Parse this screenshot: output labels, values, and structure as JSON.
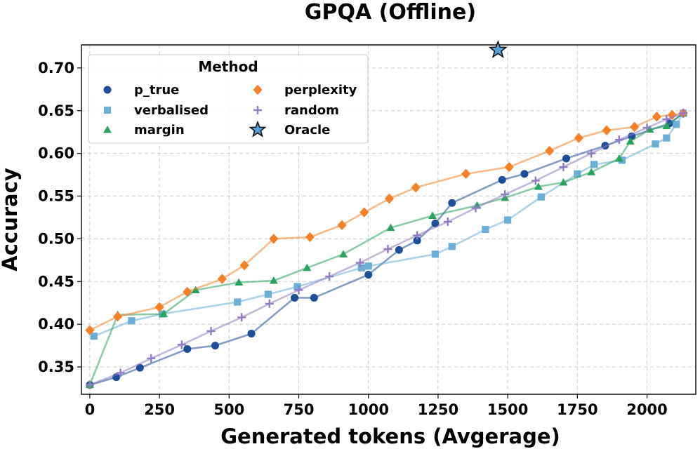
{
  "chart_data": {
    "type": "line",
    "title": "GPQA (Offline)",
    "xlabel": "Generated tokens (Avgerage)",
    "ylabel": "Accuracy",
    "xlim": [
      -30,
      2175
    ],
    "ylim": [
      0.318,
      0.727
    ],
    "xticks": [
      0,
      250,
      500,
      750,
      1000,
      1250,
      1500,
      1750,
      2000
    ],
    "xtick_labels": [
      "0",
      "250",
      "500",
      "750",
      "1000",
      "1250",
      "1500",
      "1750",
      "2000"
    ],
    "yticks": [
      0.35,
      0.4,
      0.45,
      0.5,
      0.55,
      0.6,
      0.65,
      0.7
    ],
    "ytick_labels": [
      "0.35",
      "0.40",
      "0.45",
      "0.50",
      "0.55",
      "0.60",
      "0.65",
      "0.70"
    ],
    "grid": true,
    "legend": {
      "title": "Method",
      "placement": "top-left",
      "entries": [
        "p_true",
        "perplexity",
        "verbalised",
        "random",
        "margin",
        "Oracle"
      ]
    },
    "series": [
      {
        "name": "p_true",
        "color": "#1f4e99",
        "marker": "circle",
        "x": [
          0,
          95,
          180,
          350,
          450,
          580,
          735,
          805,
          1000,
          1110,
          1175,
          1240,
          1300,
          1480,
          1560,
          1710,
          1850,
          1945,
          2080,
          2130
        ],
        "y": [
          0.329,
          0.338,
          0.349,
          0.371,
          0.375,
          0.389,
          0.431,
          0.431,
          0.458,
          0.487,
          0.498,
          0.518,
          0.542,
          0.569,
          0.576,
          0.594,
          0.609,
          0.62,
          0.635,
          0.647
        ]
      },
      {
        "name": "verbalised",
        "color": "#6baed6",
        "marker": "square",
        "x": [
          15,
          150,
          260,
          530,
          640,
          745,
          975,
          1000,
          1240,
          1300,
          1420,
          1500,
          1620,
          1750,
          1810,
          1910,
          2030,
          2070,
          2105,
          2130
        ],
        "y": [
          0.386,
          0.404,
          0.412,
          0.426,
          0.435,
          0.444,
          0.466,
          0.468,
          0.482,
          0.491,
          0.511,
          0.522,
          0.549,
          0.576,
          0.587,
          0.592,
          0.611,
          0.618,
          0.634,
          0.647
        ]
      },
      {
        "name": "margin",
        "color": "#2ca25f",
        "marker": "triangle",
        "x": [
          0,
          100,
          265,
          380,
          535,
          660,
          780,
          910,
          1080,
          1230,
          1390,
          1490,
          1610,
          1700,
          1800,
          1900,
          1940,
          2010,
          2070,
          2130
        ],
        "y": [
          0.329,
          0.411,
          0.412,
          0.44,
          0.449,
          0.451,
          0.466,
          0.482,
          0.513,
          0.527,
          0.539,
          0.548,
          0.561,
          0.566,
          0.578,
          0.594,
          0.614,
          0.628,
          0.632,
          0.647
        ]
      },
      {
        "name": "perplexity",
        "color": "#f4812a",
        "marker": "diamond",
        "x": [
          0,
          100,
          250,
          350,
          475,
          555,
          660,
          790,
          905,
          985,
          1075,
          1170,
          1350,
          1505,
          1650,
          1755,
          1855,
          1955,
          2035,
          2090,
          2130
        ],
        "y": [
          0.393,
          0.409,
          0.42,
          0.438,
          0.453,
          0.469,
          0.5,
          0.502,
          0.516,
          0.531,
          0.547,
          0.56,
          0.576,
          0.584,
          0.603,
          0.618,
          0.627,
          0.631,
          0.643,
          0.645,
          0.647
        ]
      },
      {
        "name": "random",
        "color": "#8f7cc3",
        "marker": "plus",
        "x": [
          0,
          110,
          220,
          330,
          435,
          545,
          645,
          750,
          860,
          970,
          1070,
          1175,
          1285,
          1385,
          1490,
          1600,
          1700,
          1800,
          1900,
          2000,
          2070,
          2130
        ],
        "y": [
          0.329,
          0.343,
          0.36,
          0.376,
          0.392,
          0.408,
          0.424,
          0.44,
          0.456,
          0.472,
          0.488,
          0.504,
          0.52,
          0.536,
          0.552,
          0.568,
          0.584,
          0.6,
          0.616,
          0.63,
          0.64,
          0.647
        ]
      }
    ],
    "oracle": {
      "name": "Oracle",
      "color": "#5aa0d8",
      "marker": "star",
      "x": 1465,
      "y": 0.721
    }
  }
}
